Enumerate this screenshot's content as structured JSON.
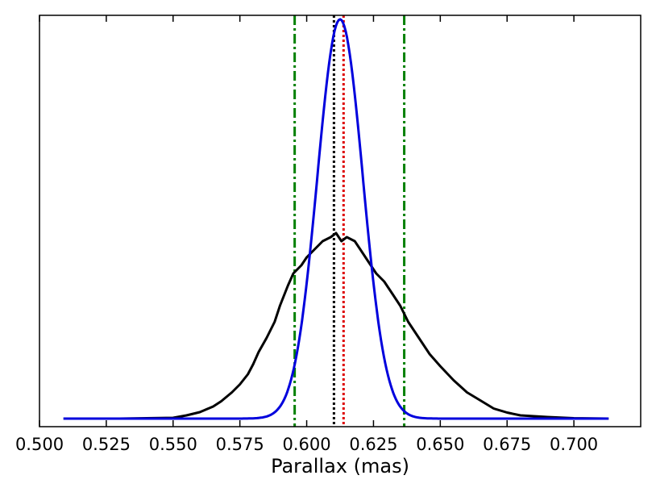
{
  "chart_data": {
    "type": "line",
    "title": "",
    "xlabel": "Parallax (mas)",
    "ylabel": "",
    "xlim": [
      0.5,
      0.725
    ],
    "ylim": [
      -0.02,
      1.0
    ],
    "x_ticks": [
      "0.500",
      "0.525",
      "0.550",
      "0.575",
      "0.600",
      "0.625",
      "0.650",
      "0.675",
      "0.700"
    ],
    "y_ticks_visible": false,
    "grid": false,
    "legend": "none",
    "series": [
      {
        "kind": "histogram",
        "color": "#000000",
        "x": [
          0.509,
          0.53,
          0.55,
          0.555,
          0.56,
          0.565,
          0.568,
          0.572,
          0.575,
          0.578,
          0.58,
          0.582,
          0.585,
          0.588,
          0.59,
          0.593,
          0.595,
          0.598,
          0.6,
          0.603,
          0.606,
          0.609,
          0.611,
          0.613,
          0.615,
          0.618,
          0.62,
          0.623,
          0.626,
          0.629,
          0.632,
          0.635,
          0.638,
          0.642,
          0.646,
          0.65,
          0.655,
          0.66,
          0.665,
          0.67,
          0.675,
          0.68,
          0.69,
          0.7,
          0.713
        ],
        "y": [
          0.0,
          0.0,
          0.002,
          0.008,
          0.016,
          0.03,
          0.043,
          0.065,
          0.085,
          0.11,
          0.135,
          0.165,
          0.2,
          0.24,
          0.28,
          0.33,
          0.36,
          0.38,
          0.4,
          0.42,
          0.44,
          0.45,
          0.46,
          0.44,
          0.45,
          0.44,
          0.42,
          0.39,
          0.36,
          0.34,
          0.31,
          0.28,
          0.24,
          0.2,
          0.16,
          0.13,
          0.095,
          0.065,
          0.045,
          0.025,
          0.015,
          0.008,
          0.004,
          0.001,
          0.0
        ]
      },
      {
        "kind": "gaussian",
        "color": "#0000dd",
        "mean": 0.6125,
        "sigma": 0.0085,
        "amplitude": 0.99,
        "x_range": [
          0.509,
          0.713
        ]
      }
    ],
    "vertical_lines": [
      {
        "x": 0.5955,
        "color": "#008000",
        "style": "dashdot"
      },
      {
        "x": 0.6365,
        "color": "#008000",
        "style": "dashdot"
      },
      {
        "x": 0.6102,
        "color": "#000000",
        "style": "dotted"
      },
      {
        "x": 0.6138,
        "color": "#dd0000",
        "style": "dotted"
      }
    ]
  }
}
